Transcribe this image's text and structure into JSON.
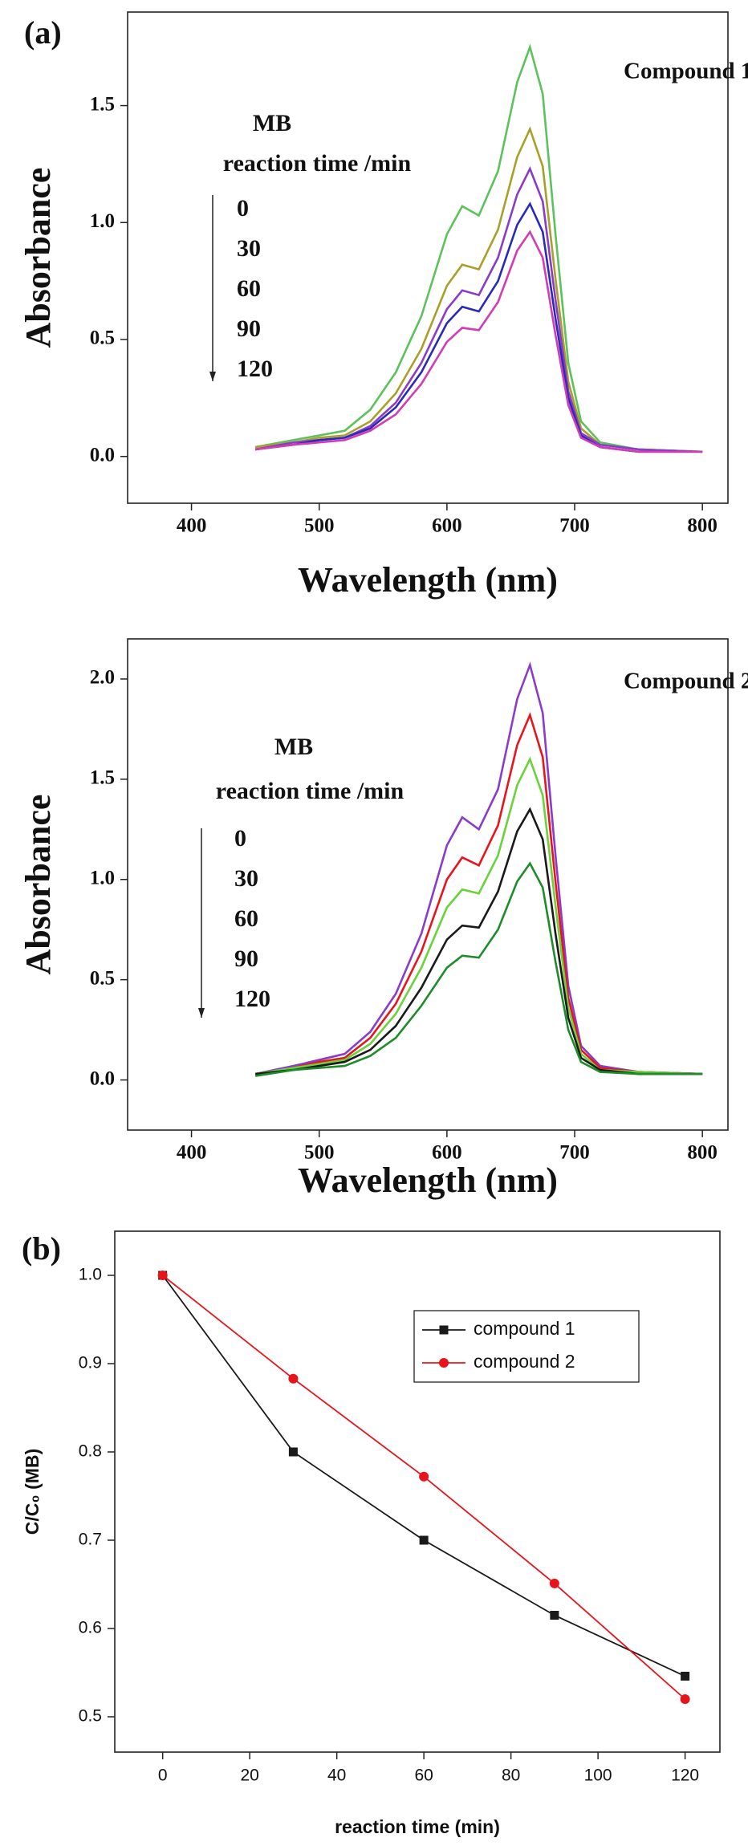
{
  "chart_data": [
    {
      "type": "line",
      "panel_label": "(a)",
      "annotation": "Compound 1",
      "legend": "left",
      "legend_title": "MB",
      "legend_subtitle": "reaction time /min",
      "x_label": "Wavelength (nm)",
      "y_label": "Absorbance",
      "xlim": [
        350,
        820
      ],
      "ylim": [
        -0.2,
        1.9
      ],
      "xticks": [
        400,
        500,
        600,
        700,
        800
      ],
      "yticks": [
        {
          "value": 0,
          "label": "0.0"
        },
        0.5,
        {
          "value": 1,
          "label": "1.0"
        },
        1.5
      ],
      "x": [
        450,
        480,
        500,
        520,
        540,
        560,
        580,
        600,
        612,
        625,
        640,
        655,
        665,
        675,
        685,
        695,
        705,
        720,
        750,
        800
      ],
      "series": [
        {
          "name": "0",
          "color": "#5cc25c",
          "values": [
            0.04,
            0.07,
            0.09,
            0.11,
            0.2,
            0.36,
            0.6,
            0.95,
            1.07,
            1.03,
            1.22,
            1.6,
            1.75,
            1.55,
            0.95,
            0.4,
            0.15,
            0.06,
            0.03,
            0.02
          ]
        },
        {
          "name": "30",
          "color": "#a8a028",
          "values": [
            0.04,
            0.06,
            0.08,
            0.09,
            0.15,
            0.27,
            0.46,
            0.73,
            0.82,
            0.8,
            0.97,
            1.28,
            1.4,
            1.24,
            0.76,
            0.32,
            0.12,
            0.05,
            0.03,
            0.02
          ]
        },
        {
          "name": "60",
          "color": "#8a3cc8",
          "values": [
            0.03,
            0.06,
            0.07,
            0.08,
            0.13,
            0.23,
            0.4,
            0.63,
            0.71,
            0.69,
            0.85,
            1.12,
            1.23,
            1.09,
            0.67,
            0.28,
            0.1,
            0.05,
            0.03,
            0.02
          ]
        },
        {
          "name": "90",
          "color": "#2a2ab8",
          "values": [
            0.03,
            0.05,
            0.07,
            0.08,
            0.12,
            0.21,
            0.36,
            0.57,
            0.64,
            0.62,
            0.75,
            0.99,
            1.08,
            0.96,
            0.59,
            0.25,
            0.09,
            0.04,
            0.02,
            0.02
          ]
        },
        {
          "name": "120",
          "color": "#d23cb4",
          "values": [
            0.03,
            0.05,
            0.06,
            0.07,
            0.11,
            0.18,
            0.31,
            0.49,
            0.55,
            0.54,
            0.66,
            0.88,
            0.96,
            0.85,
            0.52,
            0.22,
            0.08,
            0.04,
            0.02,
            0.02
          ]
        }
      ]
    },
    {
      "type": "line",
      "annotation": "Compound 2",
      "legend": "left",
      "legend_title": "MB",
      "legend_subtitle": "reaction time /min",
      "x_label": "Wavelength (nm)",
      "y_label": "Absorbance",
      "xlim": [
        350,
        820
      ],
      "ylim": [
        -0.25,
        2.2
      ],
      "xticks": [
        400,
        500,
        600,
        700,
        800
      ],
      "yticks": [
        {
          "value": 0,
          "label": "0.0"
        },
        0.5,
        {
          "value": 1,
          "label": "1.0"
        },
        1.5,
        {
          "value": 2,
          "label": "2.0"
        }
      ],
      "x": [
        450,
        480,
        500,
        520,
        540,
        560,
        580,
        600,
        612,
        625,
        640,
        655,
        665,
        675,
        685,
        695,
        705,
        720,
        750,
        800
      ],
      "series": [
        {
          "name": "0",
          "color": "#8a3cc8",
          "values": [
            0.03,
            0.07,
            0.1,
            0.13,
            0.24,
            0.43,
            0.73,
            1.17,
            1.31,
            1.25,
            1.45,
            1.9,
            2.07,
            1.83,
            1.12,
            0.47,
            0.17,
            0.07,
            0.04,
            0.03
          ]
        },
        {
          "name": "30",
          "color": "#e8141c",
          "values": [
            0.03,
            0.06,
            0.09,
            0.11,
            0.21,
            0.38,
            0.64,
            1.0,
            1.11,
            1.07,
            1.27,
            1.67,
            1.82,
            1.61,
            0.99,
            0.41,
            0.15,
            0.06,
            0.04,
            0.03
          ]
        },
        {
          "name": "60",
          "color": "#6ad23c",
          "values": [
            0.03,
            0.06,
            0.08,
            0.1,
            0.18,
            0.33,
            0.56,
            0.86,
            0.95,
            0.93,
            1.12,
            1.47,
            1.6,
            1.42,
            0.87,
            0.36,
            0.13,
            0.05,
            0.04,
            0.03
          ]
        },
        {
          "name": "90",
          "color": "#1a1a1a",
          "values": [
            0.03,
            0.05,
            0.07,
            0.09,
            0.15,
            0.27,
            0.46,
            0.7,
            0.77,
            0.76,
            0.94,
            1.24,
            1.35,
            1.2,
            0.73,
            0.31,
            0.11,
            0.05,
            0.03,
            0.03
          ]
        },
        {
          "name": "120",
          "color": "#1e8c2a",
          "values": [
            0.02,
            0.05,
            0.06,
            0.07,
            0.12,
            0.21,
            0.37,
            0.56,
            0.62,
            0.61,
            0.75,
            0.99,
            1.08,
            0.96,
            0.59,
            0.25,
            0.09,
            0.04,
            0.03,
            0.03
          ]
        }
      ]
    },
    {
      "type": "line",
      "panel_label": "(b)",
      "legend": "upper right",
      "x_label": "reaction time (min)",
      "y_label": "C/C₀ (MB)",
      "xlim": [
        -11,
        128
      ],
      "ylim": [
        0.46,
        1.05
      ],
      "xticks": [
        0,
        20,
        40,
        60,
        80,
        100,
        120
      ],
      "yticks": [
        0.5,
        0.6,
        0.7,
        0.8,
        0.9,
        {
          "value": 1,
          "label": "1.0"
        }
      ],
      "x": [
        0,
        30,
        60,
        90,
        120
      ],
      "series": [
        {
          "name": "compound 1",
          "color": "#1a1a1a",
          "marker": "square",
          "values": [
            1.0,
            0.8,
            0.7,
            0.615,
            0.546
          ]
        },
        {
          "name": "compound 2",
          "color": "#e8141c",
          "marker": "circle",
          "values": [
            1.0,
            0.883,
            0.772,
            0.651,
            0.52
          ]
        }
      ]
    }
  ]
}
